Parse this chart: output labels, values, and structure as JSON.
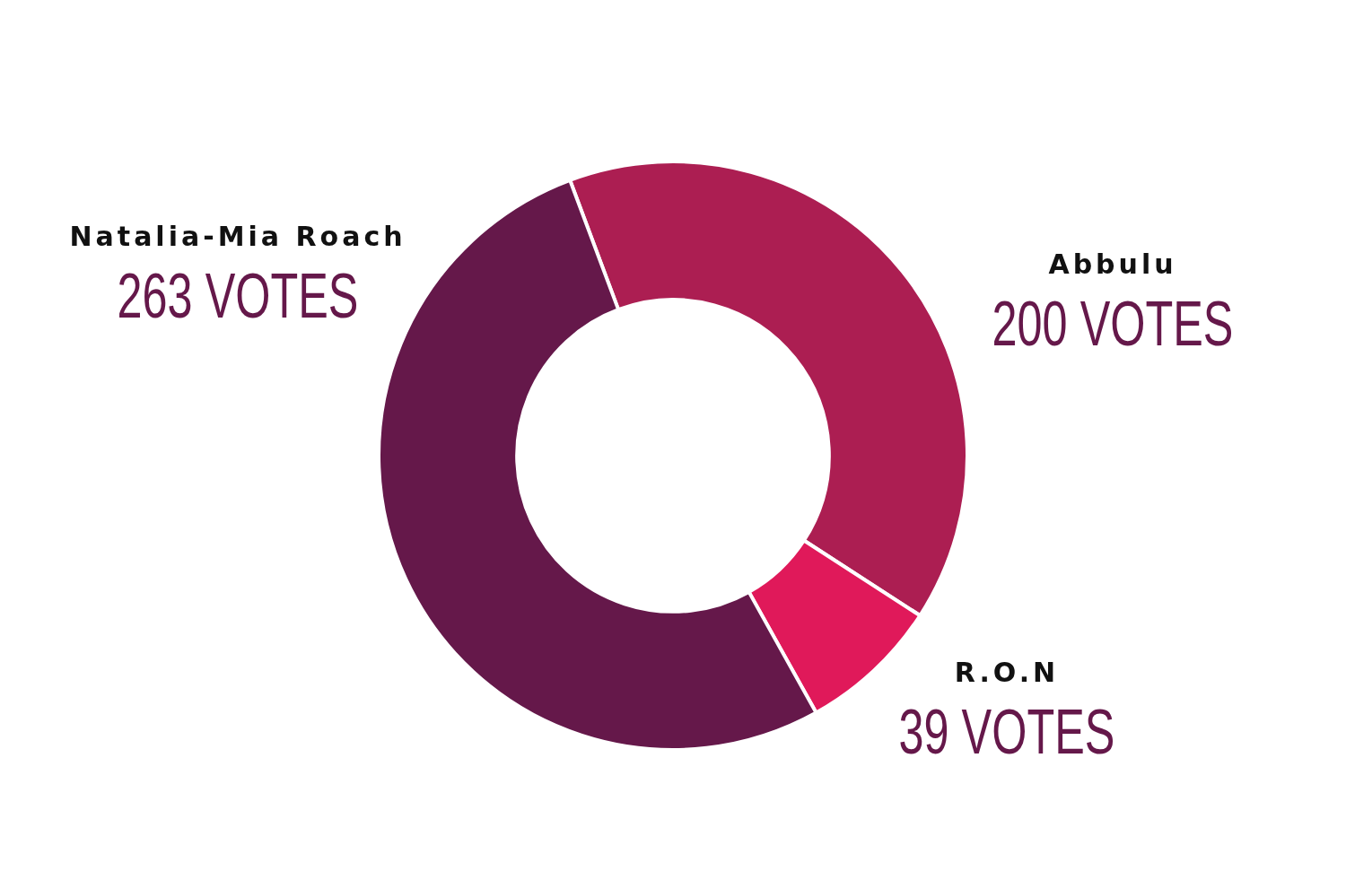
{
  "chart_data": {
    "type": "donut",
    "categories": [
      "Abbulu",
      "R.O.N",
      "Natalia-Mia Roach"
    ],
    "values": [
      200,
      39,
      263
    ],
    "colors": [
      "#ac1e52",
      "#e0195a",
      "#65184a"
    ],
    "value_labels": [
      "200 VOTES",
      "39 VOTES",
      "263 VOTES"
    ],
    "legend": false
  }
}
